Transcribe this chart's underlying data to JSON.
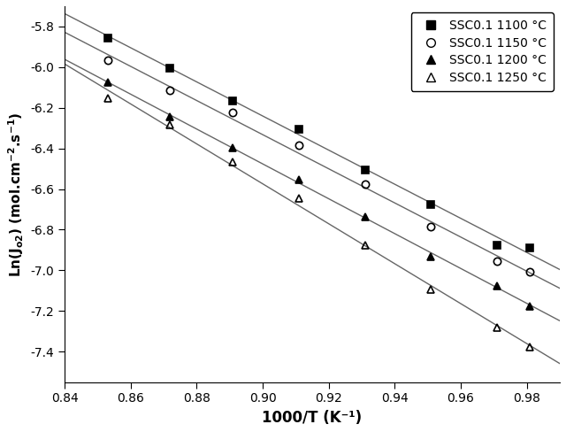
{
  "xlabel": "1000/T (K⁻¹)",
  "ylabel": "Ln(J$_{o2}$) (mol.cm⁻².s⁻¹)",
  "xlim": [
    0.84,
    0.99
  ],
  "ylim": [
    -7.55,
    -5.7
  ],
  "xticks": [
    0.84,
    0.86,
    0.88,
    0.9,
    0.92,
    0.94,
    0.96,
    0.98
  ],
  "yticks": [
    -7.4,
    -7.2,
    -7.0,
    -6.8,
    -6.6,
    -6.4,
    -6.2,
    -6.0,
    -5.8
  ],
  "series": [
    {
      "label": "SSC0.1 1100 °C",
      "marker": "s",
      "filled": true,
      "x": [
        0.853,
        0.872,
        0.891,
        0.911,
        0.931,
        0.951,
        0.971,
        0.981
      ],
      "y": [
        -5.855,
        -6.005,
        -6.165,
        -6.305,
        -6.505,
        -6.675,
        -6.875,
        -6.89
      ]
    },
    {
      "label": "SSC0.1 1150 °C",
      "marker": "o",
      "filled": false,
      "x": [
        0.853,
        0.872,
        0.891,
        0.911,
        0.931,
        0.951,
        0.971,
        0.981
      ],
      "y": [
        -5.965,
        -6.115,
        -6.225,
        -6.385,
        -6.575,
        -6.785,
        -6.955,
        -7.005
      ]
    },
    {
      "label": "SSC0.1 1200 °C",
      "marker": "^",
      "filled": true,
      "x": [
        0.853,
        0.872,
        0.891,
        0.911,
        0.931,
        0.951,
        0.971,
        0.981
      ],
      "y": [
        -6.075,
        -6.245,
        -6.395,
        -6.555,
        -6.735,
        -6.935,
        -7.075,
        -7.175
      ]
    },
    {
      "label": "SSC0.1 1250 °C",
      "marker": "^",
      "filled": false,
      "x": [
        0.853,
        0.872,
        0.891,
        0.911,
        0.931,
        0.951,
        0.971,
        0.981
      ],
      "y": [
        -6.155,
        -6.285,
        -6.465,
        -6.645,
        -6.875,
        -7.095,
        -7.28,
        -7.375
      ]
    }
  ],
  "background_color": "#ffffff",
  "line_color": "#666666"
}
